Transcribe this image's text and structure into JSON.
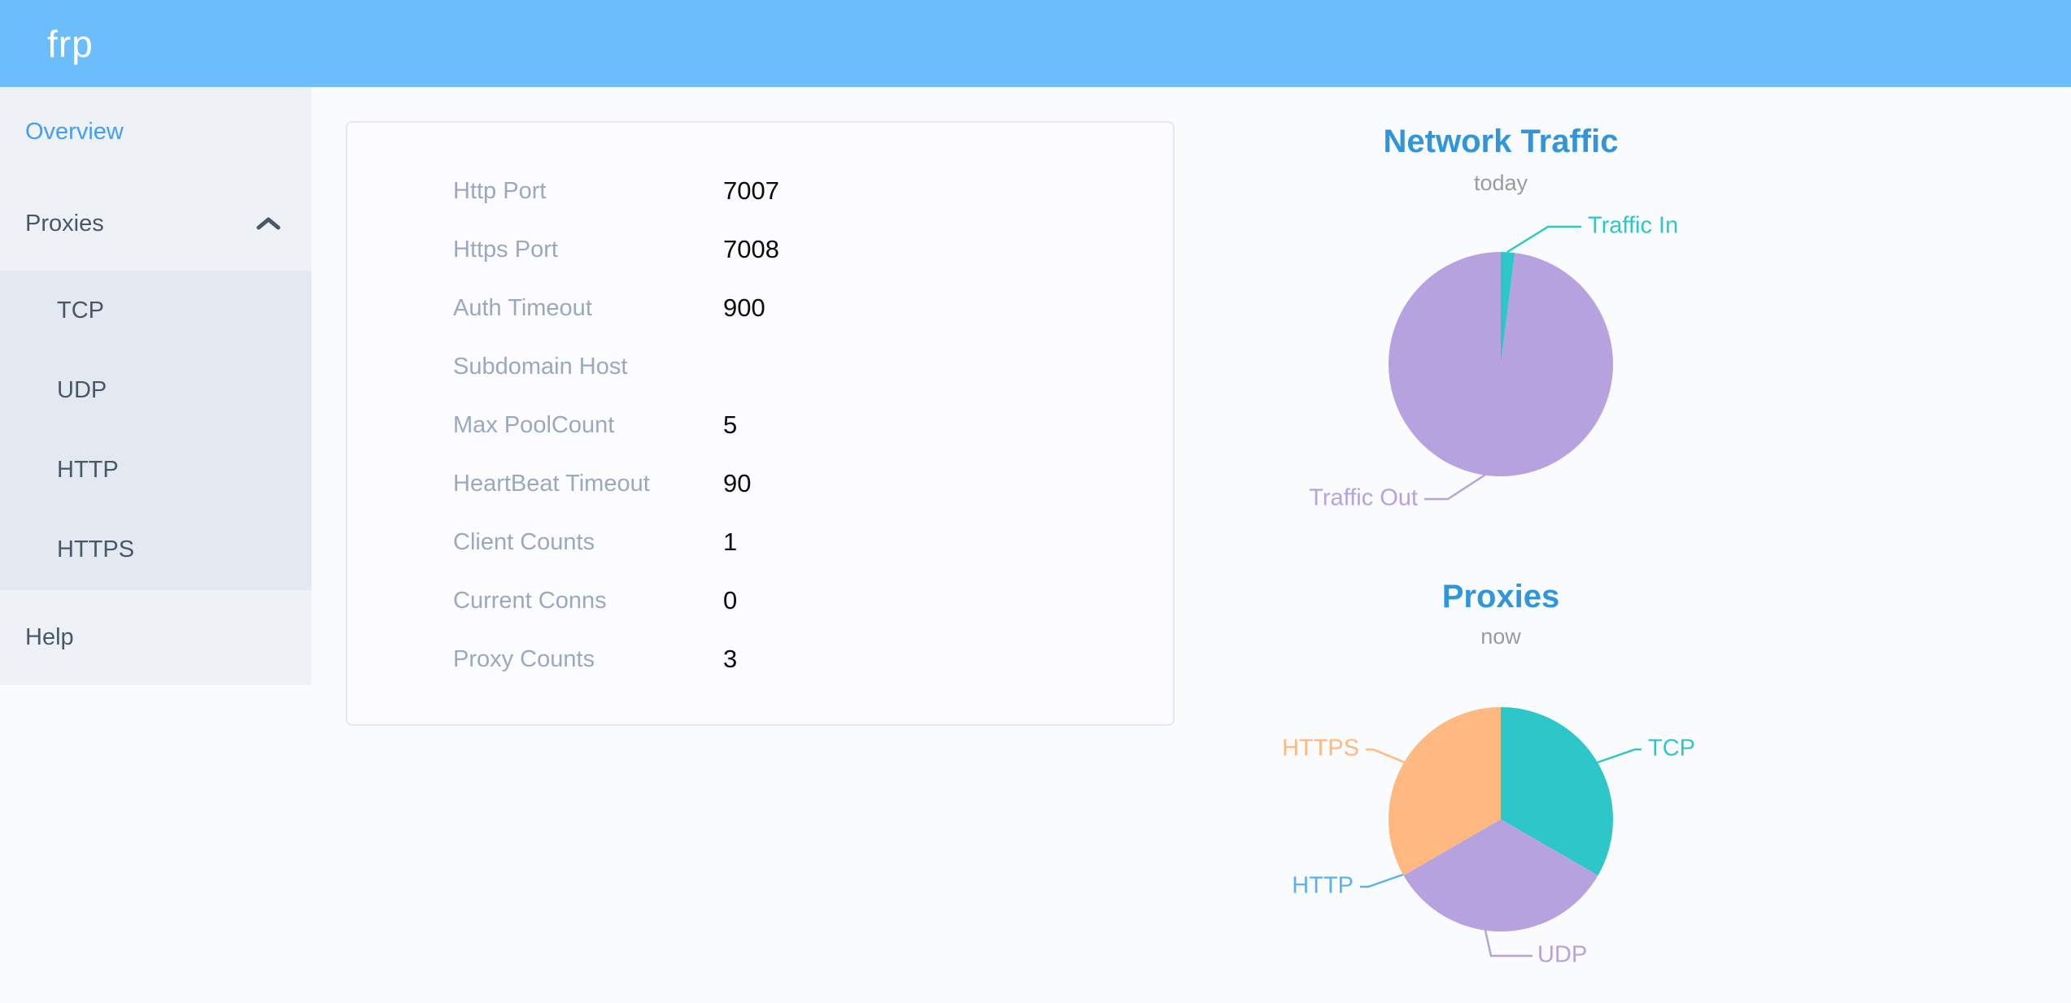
{
  "header": {
    "logo": "frp"
  },
  "sidebar": {
    "items": [
      {
        "label": "Overview",
        "active": true
      },
      {
        "label": "Proxies",
        "expanded": true,
        "children": [
          "TCP",
          "UDP",
          "HTTP",
          "HTTPS"
        ]
      },
      {
        "label": "Help"
      }
    ]
  },
  "card": {
    "rows": [
      {
        "label": "Http Port",
        "value": "7007"
      },
      {
        "label": "Https Port",
        "value": "7008"
      },
      {
        "label": "Auth Timeout",
        "value": "900"
      },
      {
        "label": "Subdomain Host",
        "value": ""
      },
      {
        "label": "Max PoolCount",
        "value": "5"
      },
      {
        "label": "HeartBeat Timeout",
        "value": "90"
      },
      {
        "label": "Client Counts",
        "value": "1"
      },
      {
        "label": "Current Conns",
        "value": "0"
      },
      {
        "label": "Proxy Counts",
        "value": "3"
      }
    ]
  },
  "chart_data": [
    {
      "type": "pie",
      "title": "Network Traffic",
      "subtitle": "today",
      "series": [
        {
          "name": "Traffic In",
          "value": 2,
          "color": "#2ec7c9"
        },
        {
          "name": "Traffic Out",
          "value": 98,
          "color": "#b6a2de"
        }
      ],
      "value_unit": "% (estimated from slice angles)",
      "legend_position": "none",
      "labels": "outside with leader lines",
      "start_angle": "top, clockwise"
    },
    {
      "type": "pie",
      "title": "Proxies",
      "subtitle": "now",
      "series": [
        {
          "name": "TCP",
          "value": 1,
          "color": "#2ec7c9"
        },
        {
          "name": "UDP",
          "value": 1,
          "color": "#b6a2de"
        },
        {
          "name": "HTTP",
          "value": 0,
          "color": "#5ab1ef"
        },
        {
          "name": "HTTPS",
          "value": 1,
          "color": "#ffb980"
        }
      ],
      "value_unit": "proxy count",
      "legend_position": "none",
      "labels": "outside with leader lines",
      "start_angle": "top, clockwise"
    }
  ],
  "theme": {
    "header_bg": "#6bbdfc",
    "sidebar_bg": "#eef1f6",
    "submenu_bg": "#e4e8f1",
    "menu_text": "#48576a",
    "active_color": "#459df2",
    "page_bg": "#fafbfd",
    "card_bg": "#fcfcfe",
    "card_border": "#e5e7f3",
    "label_color": "#9aa9bf",
    "value_color": "#0b0b0b",
    "title_color": "#3195d9",
    "subtitle_color": "#9b9b9b"
  }
}
